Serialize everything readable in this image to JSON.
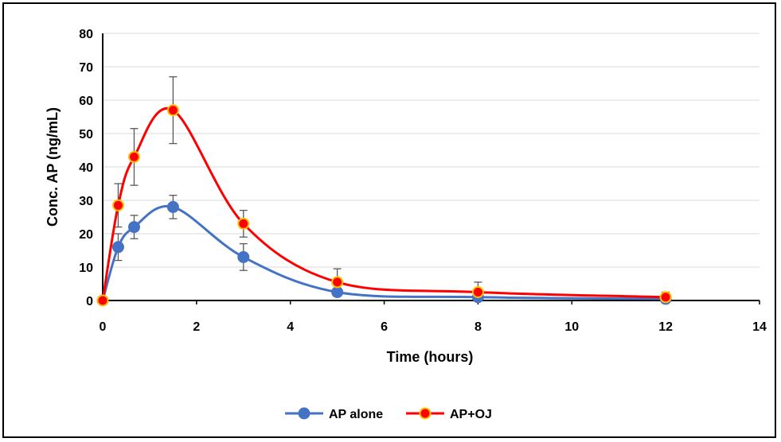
{
  "chart_data": {
    "type": "line",
    "title": "",
    "xlabel": "Time (hours)",
    "ylabel": "Conc.  AP (ng/mL)",
    "xlim": [
      0,
      14
    ],
    "ylim": [
      0,
      80
    ],
    "xticks": [
      0,
      2,
      4,
      6,
      8,
      10,
      12,
      14
    ],
    "yticks": [
      0,
      10,
      20,
      30,
      40,
      50,
      60,
      70,
      80
    ],
    "grid": "horizontal",
    "smooth": true,
    "legend_position": "bottom-center",
    "series": [
      {
        "name": "AP alone",
        "color": "#4472C4",
        "marker_fill": "#4472C4",
        "marker_edge": "#4472C4",
        "x": [
          0,
          0.33,
          0.67,
          1.5,
          3,
          5,
          8,
          12
        ],
        "y": [
          0,
          16,
          22,
          28,
          13,
          2.5,
          1,
          0.5
        ],
        "error": [
          0,
          4,
          3.5,
          3.5,
          4,
          1,
          0.5,
          0.5
        ]
      },
      {
        "name": "AP+OJ",
        "color": "#FF0000",
        "marker_fill": "#FF0000",
        "marker_edge": "#FFC000",
        "x": [
          0,
          0.33,
          0.67,
          1.5,
          3,
          5,
          8,
          12
        ],
        "y": [
          0,
          28.5,
          43,
          57,
          23,
          5.5,
          2.5,
          1
        ],
        "error": [
          0,
          6.5,
          8.5,
          10,
          4,
          4,
          3,
          1.5
        ]
      }
    ]
  }
}
